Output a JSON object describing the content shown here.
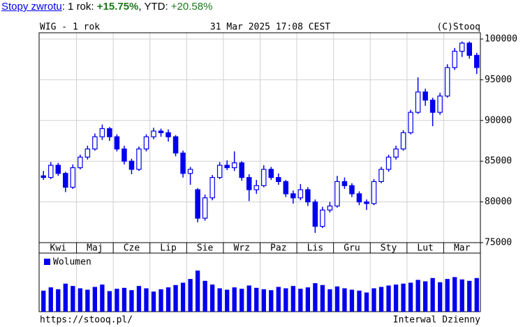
{
  "header": {
    "link": "Stopy zwrotu",
    "period": ": 1 rok: ",
    "period_return": "+15.75%",
    "ytd_label": ", YTD: ",
    "ytd_return": "+20.58%"
  },
  "chart_data": {
    "type": "candlestick",
    "title": "WIG - 1 rok",
    "subtitle": "31 Mar 2025 17:08 CEST",
    "source": "(C)Stooq",
    "color": "#0000ee",
    "xlim": [
      0,
      12
    ],
    "xticks": [
      {
        "value": 0.5,
        "label": "Kwi"
      },
      {
        "value": 1.5,
        "label": "Maj"
      },
      {
        "value": 2.5,
        "label": "Cze"
      },
      {
        "value": 3.5,
        "label": "Lip"
      },
      {
        "value": 4.5,
        "label": "Sie"
      },
      {
        "value": 5.5,
        "label": "Wrz"
      },
      {
        "value": 6.5,
        "label": "Paz"
      },
      {
        "value": 7.5,
        "label": "Lis"
      },
      {
        "value": 8.5,
        "label": "Gru"
      },
      {
        "value": 9.5,
        "label": "Sty"
      },
      {
        "value": 10.5,
        "label": "Lut"
      },
      {
        "value": 11.5,
        "label": "Mar"
      }
    ],
    "xgrid": [
      1,
      2,
      3,
      4,
      5,
      6,
      7,
      8,
      9,
      10,
      11
    ],
    "ylim": [
      75000,
      100770
    ],
    "yticks": [
      75000,
      80000,
      85000,
      90000,
      95000,
      100000
    ],
    "grid": true,
    "x": [
      0.1,
      0.3,
      0.5,
      0.7,
      0.9,
      1.1,
      1.3,
      1.5,
      1.7,
      1.9,
      2.1,
      2.3,
      2.5,
      2.7,
      2.9,
      3.1,
      3.3,
      3.5,
      3.7,
      3.9,
      4.1,
      4.3,
      4.5,
      4.7,
      4.9,
      5.1,
      5.3,
      5.5,
      5.7,
      5.9,
      6.1,
      6.3,
      6.5,
      6.7,
      6.9,
      7.1,
      7.3,
      7.5,
      7.7,
      7.9,
      8.1,
      8.3,
      8.5,
      8.7,
      8.9,
      9.1,
      9.3,
      9.5,
      9.7,
      9.9,
      10.1,
      10.3,
      10.5,
      10.7,
      10.9,
      11.1,
      11.3,
      11.5,
      11.7,
      11.9
    ],
    "open": [
      83200,
      83000,
      84500,
      83500,
      81800,
      84200,
      85500,
      86500,
      88000,
      89000,
      88000,
      86500,
      85000,
      84000,
      86500,
      88000,
      88700,
      88500,
      88000,
      86000,
      83500,
      81500,
      78000,
      80500,
      83000,
      84500,
      84200,
      84800,
      83000,
      81500,
      82000,
      84000,
      83000,
      82500,
      81000,
      80500,
      81500,
      80000,
      77000,
      79000,
      79500,
      82500,
      82000,
      81000,
      80000,
      79800,
      82500,
      84000,
      85500,
      86500,
      88500,
      91000,
      93500,
      92500,
      91000,
      93000,
      96500,
      98500,
      99500,
      98000
    ],
    "high": [
      83800,
      84900,
      84800,
      83700,
      84600,
      85800,
      86900,
      88400,
      89500,
      89200,
      88300,
      86900,
      85300,
      86800,
      88300,
      89100,
      89000,
      88900,
      88200,
      86300,
      84300,
      81700,
      80900,
      83300,
      84900,
      85100,
      86200,
      85000,
      83400,
      82700,
      84500,
      84300,
      83500,
      82700,
      81400,
      82200,
      81800,
      80300,
      79400,
      80000,
      83200,
      83000,
      82300,
      81300,
      80300,
      82800,
      84300,
      85800,
      86900,
      88800,
      91300,
      95300,
      93900,
      92800,
      93400,
      96900,
      98900,
      99700,
      99700,
      98300
    ],
    "low": [
      82700,
      82800,
      83200,
      81200,
      81600,
      84000,
      85200,
      86300,
      87600,
      87500,
      86200,
      84600,
      83400,
      83800,
      86200,
      87700,
      88000,
      87400,
      85600,
      83000,
      82100,
      77500,
      77700,
      80200,
      82800,
      83900,
      83800,
      82600,
      80100,
      81000,
      81800,
      82700,
      82100,
      80600,
      79800,
      80200,
      79500,
      76200,
      76800,
      78700,
      79300,
      81600,
      80600,
      79600,
      79000,
      79600,
      82300,
      83700,
      85200,
      86300,
      88300,
      90800,
      91800,
      89300,
      90700,
      92800,
      96200,
      97800,
      97600,
      95700
    ],
    "close": [
      83000,
      84500,
      83500,
      81800,
      84200,
      85500,
      86500,
      88000,
      89000,
      88000,
      86500,
      85000,
      84000,
      86500,
      88000,
      88700,
      88500,
      88000,
      86000,
      83500,
      84000,
      78000,
      80500,
      83000,
      84500,
      84200,
      84800,
      83000,
      81500,
      82000,
      84000,
      83000,
      82500,
      81000,
      80500,
      81500,
      80000,
      77000,
      79000,
      79500,
      82500,
      82000,
      81000,
      80000,
      79800,
      82500,
      84000,
      85500,
      86500,
      88500,
      91000,
      93500,
      92500,
      91000,
      93000,
      96500,
      98500,
      99500,
      98000,
      96500
    ],
    "volume_label": "Wolumen",
    "volume_ylim": [
      0,
      100
    ],
    "volume": [
      45,
      52,
      48,
      60,
      55,
      50,
      47,
      53,
      58,
      44,
      49,
      51,
      46,
      55,
      50,
      43,
      48,
      52,
      57,
      62,
      70,
      88,
      66,
      58,
      50,
      47,
      52,
      49,
      56,
      51,
      48,
      46,
      53,
      50,
      55,
      49,
      52,
      61,
      57,
      48,
      54,
      50,
      47,
      45,
      41,
      50,
      53,
      56,
      58,
      60,
      62,
      68,
      65,
      72,
      63,
      70,
      74,
      69,
      66,
      72
    ],
    "footer_url": "https://stooq.pl/",
    "interval": "Interwal Dzienny"
  }
}
